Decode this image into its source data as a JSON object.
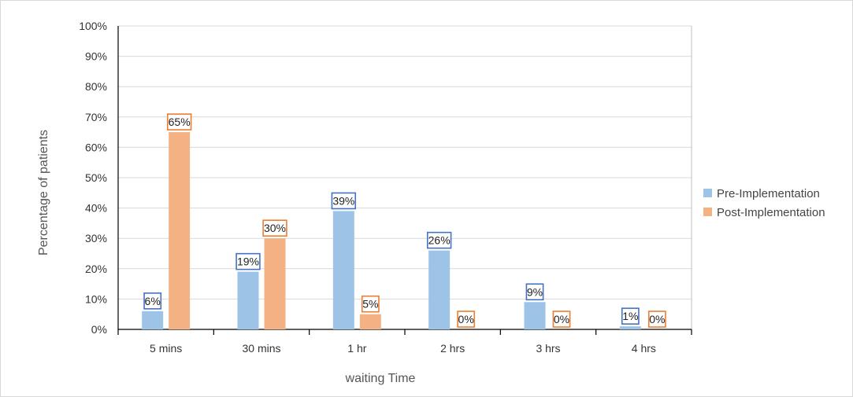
{
  "chart_data": {
    "type": "bar",
    "categories": [
      "5 mins",
      "30 mins",
      "1 hr",
      "2 hrs",
      "3 hrs",
      "4 hrs"
    ],
    "series": [
      {
        "name": "Pre-Implementation",
        "values": [
          6,
          19,
          39,
          26,
          9,
          1
        ],
        "labels": [
          "6%",
          "19%",
          "39%",
          "26%",
          "9%",
          "1%"
        ],
        "color": "#9dc3e6",
        "label_border": "#4472c4"
      },
      {
        "name": "Post-Implementation",
        "values": [
          65,
          30,
          5,
          0,
          0,
          0
        ],
        "labels": [
          "65%",
          "30%",
          "5%",
          "0%",
          "0%",
          "0%"
        ],
        "color": "#f4b183",
        "label_border": "#ed7d31"
      }
    ],
    "y_ticks": [
      "0%",
      "10%",
      "20%",
      "30%",
      "40%",
      "50%",
      "60%",
      "70%",
      "80%",
      "90%",
      "100%"
    ],
    "ylim": [
      0,
      100
    ],
    "xlabel": "waiting Time",
    "ylabel": "Percentage of patients",
    "grid": true,
    "legend_position": "right"
  }
}
